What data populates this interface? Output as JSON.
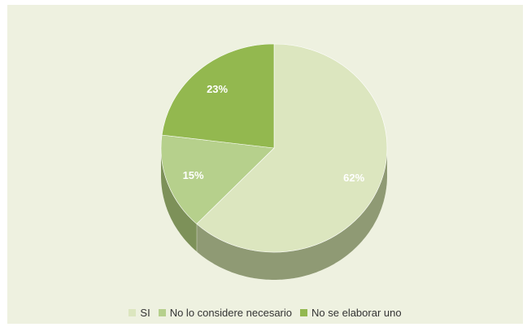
{
  "chart_data": {
    "type": "pie",
    "categories": [
      "SI",
      "No lo considere necesario",
      "No se elaborar uno"
    ],
    "values": [
      62,
      15,
      23
    ],
    "labels": [
      "62%",
      "15%",
      "23%"
    ],
    "colors": [
      "#dce6bf",
      "#b6d08c",
      "#93b84f"
    ],
    "side_colors": [
      "#8f9a74",
      "#7d9159",
      "#6f8a3e"
    ],
    "legend_position": "bottom",
    "style": "3d"
  }
}
